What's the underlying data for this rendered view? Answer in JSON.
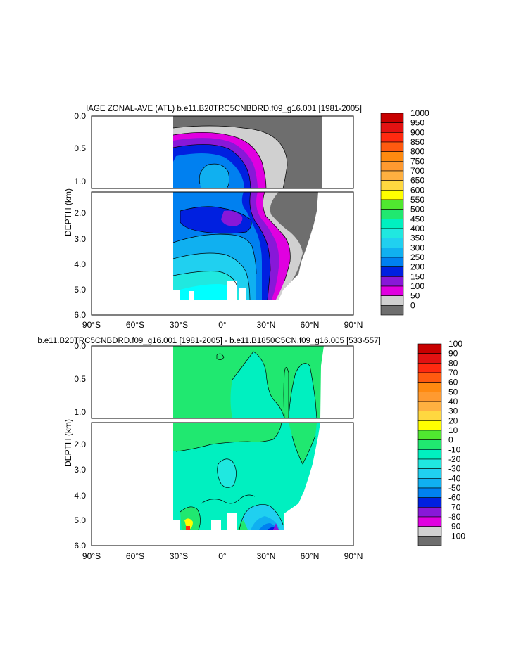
{
  "chart_data": [
    {
      "type": "heatmap",
      "title": "IAGE ZONAL-AVE (ATL) b.e11.B20TRC5CNBDRD.f09_g16.001 [1981-2005]",
      "ylabel": "DEPTH (km)",
      "xlabel": "",
      "xlim": [
        -90,
        90
      ],
      "x_ticks": [
        "90°S",
        "60°S",
        "30°S",
        "0°",
        "30°N",
        "60°N",
        "90°N"
      ],
      "upper_panel": {
        "ylim": [
          0,
          1.15
        ],
        "y_ticks": [
          "0.0",
          "0.5",
          "1.0"
        ]
      },
      "lower_panel": {
        "ylim": [
          1.15,
          6.0
        ],
        "y_ticks": [
          "2.0",
          "3.0",
          "4.0",
          "5.0",
          "6.0"
        ]
      },
      "ocean_extent": {
        "lat_min": -34,
        "lat_max": 68
      },
      "colorbar_levels": [
        "1000",
        "950",
        "900",
        "850",
        "800",
        "750",
        "700",
        "650",
        "600",
        "550",
        "500",
        "450",
        "400",
        "350",
        "300",
        "250",
        "200",
        "150",
        "100",
        "50",
        "0"
      ],
      "colorbar_colors": [
        "#c80000",
        "#e21212",
        "#ff2a10",
        "#ff5a10",
        "#ff8a10",
        "#ff9a30",
        "#ffb040",
        "#ffd840",
        "#ffff00",
        "#50e830",
        "#20e870",
        "#00f0c0",
        "#20e8e0",
        "#20d0f0",
        "#10b0f0",
        "#0080f0",
        "#0020e0",
        "#8818d8",
        "#e000e0",
        "#d0d0d0",
        "#6e6e6e"
      ]
    },
    {
      "type": "heatmap",
      "title": "b.e11.B20TRC5CNBDRD.f09_g16.001 [1981-2005] - b.e11.B1850C5CN.f09_g16.005 [533-557]",
      "ylabel": "DEPTH (km)",
      "xlabel": "",
      "xlim": [
        -90,
        90
      ],
      "x_ticks": [
        "90°S",
        "60°S",
        "30°S",
        "0°",
        "30°N",
        "60°N",
        "90°N"
      ],
      "upper_panel": {
        "ylim": [
          0,
          1.15
        ],
        "y_ticks": [
          "0.0",
          "0.5",
          "1.0"
        ]
      },
      "lower_panel": {
        "ylim": [
          1.15,
          6.0
        ],
        "y_ticks": [
          "2.0",
          "3.0",
          "4.0",
          "5.0",
          "6.0"
        ]
      },
      "ocean_extent": {
        "lat_min": -34,
        "lat_max": 68
      },
      "colorbar_levels": [
        "100",
        "90",
        "80",
        "70",
        "60",
        "50",
        "40",
        "30",
        "20",
        "10",
        "0",
        "-10",
        "-20",
        "-30",
        "-40",
        "-50",
        "-60",
        "-70",
        "-80",
        "-90",
        "-100"
      ],
      "colorbar_colors": [
        "#c80000",
        "#e21212",
        "#ff2a10",
        "#ff5a10",
        "#ff8a10",
        "#ff9a30",
        "#ffb040",
        "#ffd840",
        "#ffff00",
        "#50e830",
        "#20e870",
        "#00f0c0",
        "#20e8e0",
        "#20d0f0",
        "#10b0f0",
        "#0080f0",
        "#0020e0",
        "#8818d8",
        "#e000e0",
        "#d0d0d0",
        "#6e6e6e"
      ]
    }
  ]
}
